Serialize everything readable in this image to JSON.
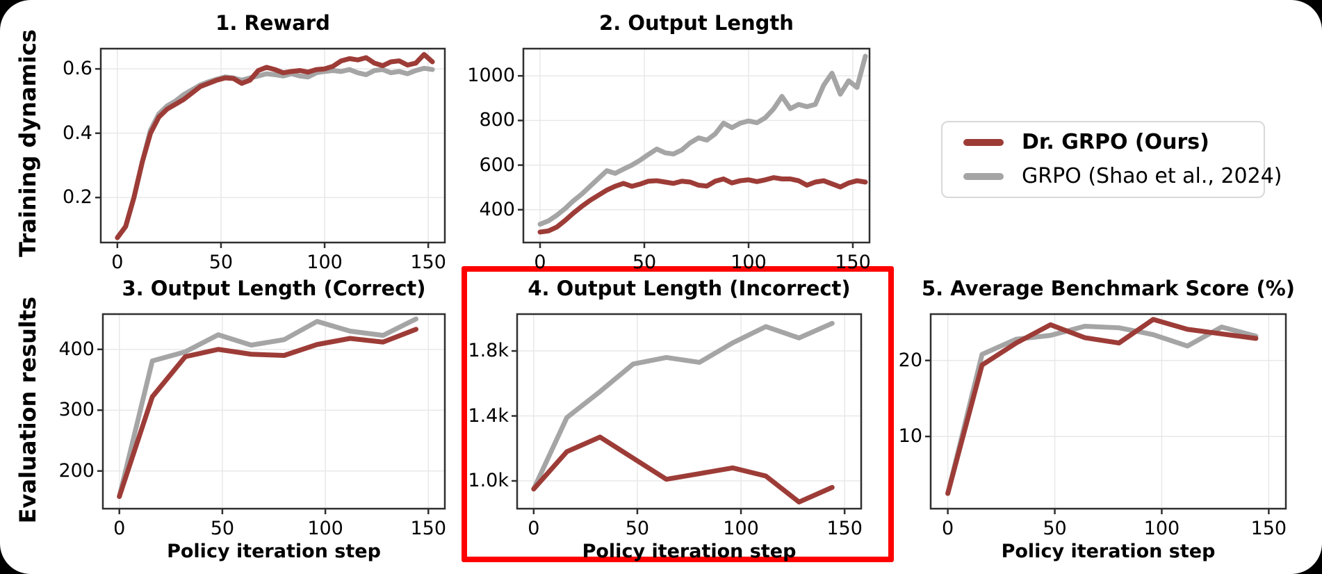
{
  "page": {
    "background": "#000000",
    "card_background": "#ffffff"
  },
  "row_labels": {
    "top": "Training dynamics",
    "bottom": "Evaluation results"
  },
  "legend": {
    "position": "upper-right-outside",
    "items": [
      {
        "label": "Dr. GRPO (Ours)",
        "color": "#9d3c37",
        "bold": true
      },
      {
        "label": "GRPO (Shao et al., 2024)",
        "color": "#a5a5a5",
        "bold": false
      }
    ]
  },
  "colors": {
    "dr_grpo": "#9d3c37",
    "grpo": "#a5a5a5",
    "highlight": "#ff0000",
    "grid": "#e8e8e8",
    "frame": "#2f2f2f"
  },
  "chart_data": [
    {
      "id": "reward",
      "type": "line",
      "title": "1. Reward",
      "xlabel": "",
      "ylabel": "",
      "xlim": [
        -8,
        158
      ],
      "ylim": [
        0.06,
        0.663
      ],
      "xticks": [
        0,
        50,
        100,
        150
      ],
      "yticks": [
        0.2,
        0.4,
        0.6
      ],
      "ytick_labels": [
        "0.2",
        "0.4",
        "0.6"
      ],
      "grid": true,
      "x_start": 0,
      "x_step": 4,
      "series": [
        {
          "name": "GRPO (Shao et al., 2024)",
          "color_key": "grpo",
          "values": [
            0.075,
            0.11,
            0.2,
            0.31,
            0.41,
            0.46,
            0.485,
            0.5,
            0.52,
            0.535,
            0.55,
            0.56,
            0.568,
            0.575,
            0.572,
            0.565,
            0.572,
            0.578,
            0.585,
            0.582,
            0.578,
            0.585,
            0.578,
            0.575,
            0.588,
            0.592,
            0.595,
            0.592,
            0.598,
            0.588,
            0.582,
            0.595,
            0.598,
            0.588,
            0.592,
            0.585,
            0.595,
            0.602,
            0.598
          ]
        },
        {
          "name": "Dr. GRPO (Ours)",
          "color_key": "dr_grpo",
          "values": [
            0.075,
            0.11,
            0.2,
            0.31,
            0.4,
            0.45,
            0.475,
            0.49,
            0.505,
            0.525,
            0.545,
            0.555,
            0.565,
            0.572,
            0.57,
            0.555,
            0.565,
            0.595,
            0.605,
            0.598,
            0.588,
            0.592,
            0.595,
            0.59,
            0.598,
            0.6,
            0.608,
            0.625,
            0.632,
            0.628,
            0.635,
            0.618,
            0.61,
            0.622,
            0.625,
            0.612,
            0.618,
            0.645,
            0.622
          ]
        }
      ]
    },
    {
      "id": "output_length",
      "type": "line",
      "title": "2. Output Length",
      "xlabel": "",
      "ylabel": "",
      "xlim": [
        -8,
        158
      ],
      "ylim": [
        253,
        1122
      ],
      "xticks": [
        0,
        50,
        100,
        150
      ],
      "yticks": [
        400,
        600,
        800,
        1000
      ],
      "ytick_labels": [
        "400",
        "600",
        "800",
        "1000"
      ],
      "grid": true,
      "x_start": 0,
      "x_step": 4,
      "series": [
        {
          "name": "GRPO (Shao et al., 2024)",
          "color_key": "grpo",
          "values": [
            335,
            350,
            375,
            405,
            440,
            470,
            505,
            540,
            575,
            563,
            582,
            600,
            622,
            648,
            672,
            655,
            650,
            668,
            700,
            722,
            712,
            740,
            788,
            768,
            788,
            798,
            790,
            812,
            852,
            908,
            853,
            872,
            862,
            872,
            958,
            1012,
            918,
            978,
            948,
            1088
          ]
        },
        {
          "name": "Dr. GRPO (Ours)",
          "color_key": "dr_grpo",
          "values": [
            300,
            305,
            322,
            352,
            385,
            415,
            442,
            465,
            488,
            505,
            518,
            505,
            515,
            528,
            530,
            524,
            518,
            528,
            524,
            510,
            506,
            528,
            538,
            520,
            530,
            534,
            526,
            534,
            544,
            538,
            538,
            530,
            510,
            524,
            530,
            516,
            502,
            520,
            530,
            524
          ]
        }
      ]
    },
    {
      "id": "output_length_correct",
      "type": "line",
      "title": "3. Output Length (Correct)",
      "xlabel": "Policy iteration step",
      "ylabel": "",
      "xlim": [
        -8,
        158
      ],
      "ylim": [
        138,
        458
      ],
      "xticks": [
        0,
        50,
        100,
        150
      ],
      "yticks": [
        200,
        300,
        400
      ],
      "ytick_labels": [
        "200",
        "300",
        "400"
      ],
      "grid": true,
      "x_start": 0,
      "x_step": 16,
      "series": [
        {
          "name": "GRPO (Shao et al., 2024)",
          "color_key": "grpo",
          "values": [
            158,
            381,
            396,
            424,
            407,
            416,
            446,
            430,
            423,
            450
          ]
        },
        {
          "name": "Dr. GRPO (Ours)",
          "color_key": "dr_grpo",
          "values": [
            158,
            322,
            388,
            400,
            392,
            390,
            408,
            418,
            412,
            433
          ]
        }
      ]
    },
    {
      "id": "output_length_incorrect",
      "type": "line",
      "title": "4. Output Length (Incorrect)",
      "xlabel": "Policy iteration step",
      "ylabel": "",
      "highlighted": true,
      "xlim": [
        -8,
        158
      ],
      "ylim": [
        829,
        2027
      ],
      "xticks": [
        0,
        50,
        100,
        150
      ],
      "yticks": [
        1000,
        1400,
        1800
      ],
      "ytick_labels": [
        "1.0k",
        "1.4k",
        "1.8k"
      ],
      "grid": true,
      "x_start": 0,
      "x_step": 16,
      "series": [
        {
          "name": "GRPO (Shao et al., 2024)",
          "color_key": "grpo",
          "values": [
            950,
            1390,
            1550,
            1720,
            1760,
            1730,
            1850,
            1950,
            1880,
            1970
          ]
        },
        {
          "name": "Dr. GRPO (Ours)",
          "color_key": "dr_grpo",
          "values": [
            950,
            1180,
            1270,
            1140,
            1010,
            1045,
            1080,
            1030,
            870,
            960
          ]
        }
      ]
    },
    {
      "id": "benchmark",
      "type": "line",
      "title": "5. Average Benchmark Score (%)",
      "xlabel": "Policy iteration step",
      "ylabel": "",
      "xlim": [
        -8,
        158
      ],
      "ylim": [
        0.5,
        26.1
      ],
      "xticks": [
        0,
        50,
        100,
        150
      ],
      "yticks": [
        10,
        20
      ],
      "ytick_labels": [
        "10",
        "20"
      ],
      "grid": true,
      "x_start": 0,
      "x_step": 16,
      "series": [
        {
          "name": "GRPO (Shao et al., 2024)",
          "color_key": "grpo",
          "values": [
            2.5,
            20.8,
            22.8,
            23.3,
            24.5,
            24.3,
            23.4,
            21.9,
            24.4,
            23.2
          ]
        },
        {
          "name": "Dr. GRPO (Ours)",
          "color_key": "dr_grpo",
          "values": [
            2.5,
            19.4,
            22.3,
            24.7,
            23.0,
            22.3,
            25.4,
            24.1,
            23.5,
            22.9
          ]
        }
      ]
    }
  ]
}
